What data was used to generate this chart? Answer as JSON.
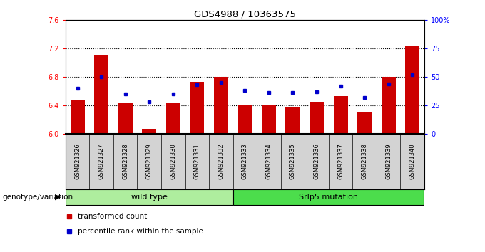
{
  "title": "GDS4988 / 10363575",
  "samples": [
    "GSM921326",
    "GSM921327",
    "GSM921328",
    "GSM921329",
    "GSM921330",
    "GSM921331",
    "GSM921332",
    "GSM921333",
    "GSM921334",
    "GSM921335",
    "GSM921336",
    "GSM921337",
    "GSM921338",
    "GSM921339",
    "GSM921340"
  ],
  "red_values": [
    6.48,
    7.11,
    6.44,
    6.07,
    6.44,
    6.73,
    6.8,
    6.41,
    6.41,
    6.37,
    6.45,
    6.53,
    6.3,
    6.8,
    7.23
  ],
  "blue_values": [
    40,
    50,
    35,
    28,
    35,
    43,
    45,
    38,
    36,
    36,
    37,
    42,
    32,
    44,
    52
  ],
  "ylim_left": [
    6.0,
    7.6
  ],
  "ylim_right": [
    0,
    100
  ],
  "yticks_left": [
    6.0,
    6.4,
    6.8,
    7.2,
    7.6
  ],
  "yticks_right": [
    0,
    25,
    50,
    75,
    100
  ],
  "ytick_labels_right": [
    "0",
    "25",
    "50",
    "75",
    "100%"
  ],
  "hlines": [
    6.4,
    6.8,
    7.2
  ],
  "bar_color": "#cc0000",
  "square_color": "#0000cc",
  "bar_width": 0.6,
  "group1_label": "wild type",
  "group2_label": "Srlp5 mutation",
  "group1_indices": [
    0,
    1,
    2,
    3,
    4,
    5,
    6
  ],
  "group2_indices": [
    7,
    8,
    9,
    10,
    11,
    12,
    13,
    14
  ],
  "genotype_label": "genotype/variation",
  "legend1": "transformed count",
  "legend2": "percentile rank within the sample",
  "base": 6.0,
  "label_bg": "#d3d3d3",
  "group1_color": "#aeed9e",
  "group2_color": "#4cdd4c"
}
